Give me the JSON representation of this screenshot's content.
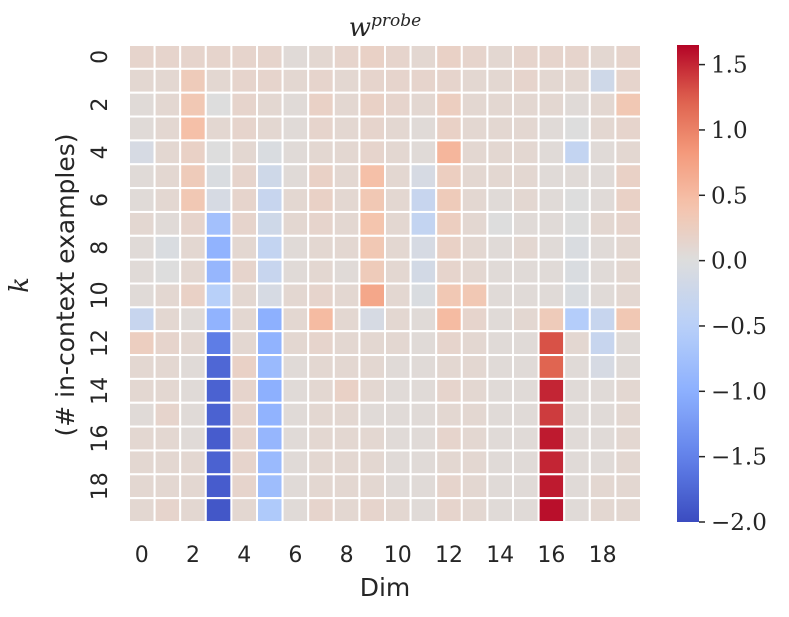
{
  "chart_data": {
    "type": "heatmap",
    "title_base": "w",
    "title_sup": "probe",
    "xlabel": "Dim",
    "ylabel_symbol": "k",
    "ylabel_text": "(# in-context examples)",
    "x_tick_labels": [
      "0",
      "2",
      "4",
      "6",
      "8",
      "10",
      "12",
      "14",
      "16",
      "18"
    ],
    "y_tick_labels": [
      "0",
      "2",
      "4",
      "6",
      "8",
      "10",
      "12",
      "14",
      "16",
      "18"
    ],
    "n_cols": 20,
    "n_rows": 20,
    "colorbar": {
      "vmin": -2.0,
      "vmax": 1.65,
      "tick_labels": [
        "1.5",
        "1.0",
        "0.5",
        "0.0",
        "−0.5",
        "−1.0",
        "−1.5",
        "−2.0"
      ],
      "tick_values": [
        1.5,
        1.0,
        0.5,
        0.0,
        -0.5,
        -1.0,
        -1.5,
        -2.0
      ],
      "colormap": "coolwarm"
    },
    "values": [
      [
        0.15,
        0.15,
        0.15,
        0.15,
        0.15,
        0.15,
        0.05,
        0.1,
        0.15,
        0.2,
        0.15,
        0.1,
        0.2,
        0.15,
        0.1,
        0.15,
        0.15,
        0.15,
        0.1,
        0.15
      ],
      [
        0.1,
        0.1,
        0.3,
        0.1,
        0.15,
        0.15,
        0.1,
        0.15,
        0.1,
        0.15,
        0.15,
        0.15,
        0.15,
        0.1,
        0.1,
        0.15,
        0.1,
        0.1,
        -0.2,
        0.15
      ],
      [
        0.05,
        0.1,
        0.35,
        0.0,
        0.15,
        0.1,
        0.05,
        0.2,
        0.1,
        0.2,
        0.15,
        0.1,
        0.25,
        0.1,
        0.1,
        0.1,
        0.1,
        0.05,
        0.1,
        0.35
      ],
      [
        0.05,
        0.1,
        0.45,
        0.1,
        0.15,
        0.1,
        0.05,
        0.15,
        0.1,
        0.15,
        0.1,
        0.05,
        0.2,
        0.1,
        0.1,
        0.1,
        0.05,
        0.0,
        0.1,
        0.15
      ],
      [
        -0.1,
        0.1,
        0.2,
        0.0,
        0.1,
        -0.05,
        0.05,
        0.1,
        0.1,
        0.15,
        0.1,
        0.05,
        0.55,
        0.1,
        0.1,
        0.1,
        0.05,
        -0.35,
        0.05,
        0.1
      ],
      [
        0.05,
        0.1,
        0.3,
        -0.05,
        0.15,
        -0.2,
        0.05,
        0.2,
        0.1,
        0.45,
        0.1,
        -0.1,
        0.25,
        0.1,
        0.1,
        0.1,
        0.05,
        0.05,
        0.05,
        0.2
      ],
      [
        0.05,
        0.1,
        0.35,
        -0.1,
        0.15,
        -0.3,
        0.1,
        0.2,
        0.1,
        0.35,
        0.1,
        -0.3,
        0.3,
        0.1,
        0.05,
        0.1,
        0.05,
        0.0,
        0.05,
        0.2
      ],
      [
        0.1,
        0.05,
        0.15,
        -0.75,
        0.15,
        -0.2,
        0.1,
        0.15,
        0.1,
        0.4,
        0.1,
        -0.35,
        0.25,
        0.1,
        0.0,
        0.05,
        0.05,
        0.0,
        0.1,
        0.15
      ],
      [
        0.05,
        -0.05,
        0.1,
        -0.95,
        0.1,
        -0.35,
        0.05,
        0.1,
        0.1,
        0.35,
        0.1,
        -0.1,
        0.2,
        0.1,
        0.05,
        0.1,
        0.05,
        -0.05,
        0.05,
        0.1
      ],
      [
        0.05,
        0.0,
        0.1,
        -0.9,
        0.15,
        -0.3,
        0.05,
        0.1,
        0.05,
        0.3,
        0.1,
        -0.15,
        0.15,
        0.1,
        0.05,
        0.05,
        0.05,
        -0.05,
        0.05,
        0.1
      ],
      [
        0.05,
        0.1,
        0.2,
        -0.5,
        0.1,
        -0.1,
        0.1,
        0.15,
        0.1,
        0.7,
        0.1,
        -0.05,
        0.35,
        0.35,
        0.05,
        0.05,
        0.05,
        -0.05,
        0.05,
        0.1
      ],
      [
        -0.3,
        0.1,
        0.05,
        -0.95,
        0.1,
        -1.0,
        0.1,
        0.5,
        0.1,
        -0.1,
        0.1,
        0.05,
        0.5,
        0.15,
        0.05,
        0.1,
        0.3,
        -0.55,
        -0.3,
        0.35
      ],
      [
        0.25,
        0.15,
        0.1,
        -1.55,
        0.1,
        -0.95,
        0.1,
        0.15,
        0.1,
        0.1,
        0.1,
        0.05,
        0.15,
        0.1,
        0.05,
        0.05,
        1.3,
        0.1,
        -0.3,
        0.05
      ],
      [
        0.1,
        0.1,
        0.05,
        -1.75,
        0.2,
        -0.85,
        0.05,
        0.1,
        0.1,
        0.1,
        0.05,
        0.05,
        0.1,
        0.1,
        0.05,
        0.05,
        1.2,
        0.05,
        -0.1,
        0.05
      ],
      [
        0.1,
        0.1,
        0.05,
        -1.8,
        0.15,
        -1.0,
        0.05,
        0.1,
        0.2,
        0.1,
        0.05,
        0.05,
        0.15,
        0.1,
        0.05,
        0.05,
        1.5,
        0.05,
        0.05,
        0.1
      ],
      [
        0.05,
        0.15,
        0.05,
        -1.8,
        0.15,
        -0.95,
        0.05,
        0.1,
        0.1,
        0.05,
        0.05,
        0.05,
        0.1,
        0.1,
        0.05,
        0.05,
        1.4,
        0.05,
        0.05,
        0.1
      ],
      [
        0.1,
        0.1,
        0.05,
        -1.85,
        0.15,
        -0.9,
        0.05,
        0.1,
        0.1,
        0.1,
        0.05,
        0.05,
        0.15,
        0.1,
        0.05,
        0.05,
        1.55,
        0.05,
        0.05,
        0.1
      ],
      [
        0.1,
        0.1,
        0.1,
        -1.8,
        0.15,
        -0.85,
        0.05,
        0.1,
        0.1,
        0.1,
        0.05,
        0.05,
        0.1,
        0.1,
        0.05,
        0.05,
        1.5,
        0.05,
        0.05,
        0.1
      ],
      [
        0.1,
        0.1,
        0.1,
        -1.85,
        0.15,
        -0.8,
        0.05,
        0.1,
        0.1,
        0.1,
        0.05,
        0.05,
        0.15,
        0.1,
        0.05,
        0.05,
        1.55,
        0.05,
        0.1,
        0.1
      ],
      [
        0.1,
        0.15,
        0.1,
        -1.9,
        0.1,
        -0.6,
        0.05,
        0.15,
        0.1,
        0.15,
        0.1,
        0.05,
        0.15,
        0.1,
        0.05,
        0.05,
        1.6,
        0.05,
        0.1,
        0.1
      ]
    ]
  }
}
